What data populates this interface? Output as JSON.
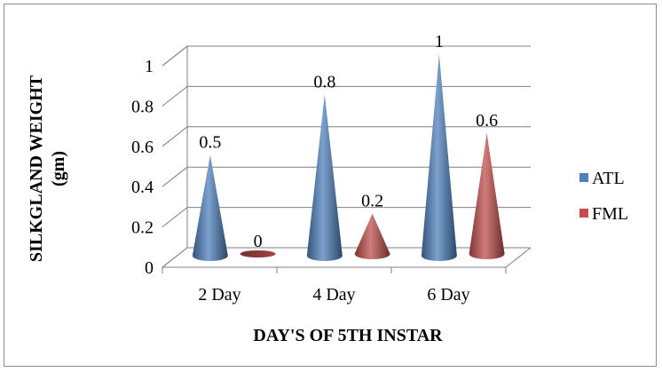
{
  "chart_data": {
    "type": "bar",
    "variant": "3d-cone",
    "categories": [
      "2 Day",
      "4 Day",
      "6 Day"
    ],
    "series": [
      {
        "name": "ATL",
        "values": [
          0.5,
          0.8,
          1
        ],
        "data_labels": [
          "0.5",
          "0.8",
          "1"
        ],
        "color": "#4f81bd"
      },
      {
        "name": "FML",
        "values": [
          0,
          0.2,
          0.6
        ],
        "data_labels": [
          "0",
          "0.2",
          "0.6"
        ],
        "color": "#c0504d"
      }
    ],
    "title": "",
    "xlabel": "DAY'S OF 5TH INSTAR",
    "ylabel_line1": "SILKGLAND WEIGHT",
    "ylabel_line2": "(gm)",
    "ylim": [
      0,
      1
    ],
    "yticks": [
      "0",
      "0.2",
      "0.4",
      "0.6",
      "0.8",
      "1"
    ],
    "grid": true,
    "legend_position": "right"
  }
}
